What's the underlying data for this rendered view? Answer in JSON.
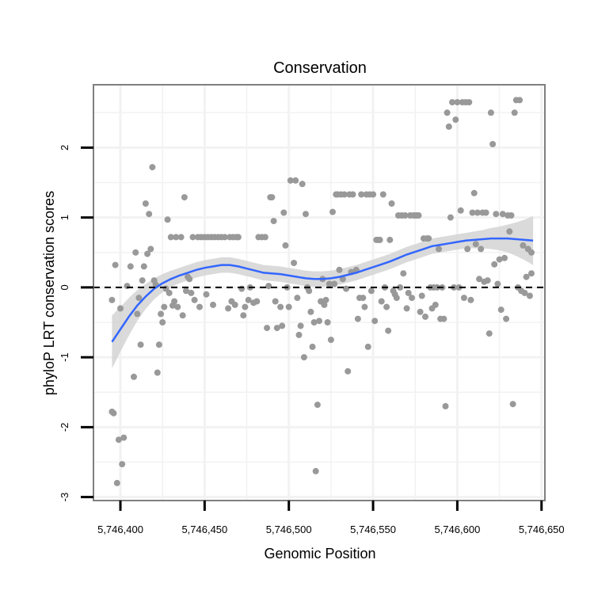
{
  "chart_data": {
    "type": "scatter",
    "title": "Conservation",
    "xlabel": "Genomic Position",
    "ylabel": "phyloP LRT conservation scores",
    "xlim": [
      5746384,
      5746652
    ],
    "ylim": [
      -3.05,
      2.9
    ],
    "x_ticks": [
      5746400,
      5746450,
      5746500,
      5746550,
      5746600,
      5746650
    ],
    "x_tick_labels": [
      "5,746,400",
      "5,746,450",
      "5,746,500",
      "5,746,550",
      "5,746,600",
      "5,746,650"
    ],
    "y_ticks": [
      -3,
      -2,
      -1,
      0,
      1,
      2
    ],
    "y_tick_labels": [
      "-3",
      "-2",
      "-1",
      "0",
      "1",
      "2"
    ],
    "reference_line": 0,
    "grid": true,
    "colors": {
      "points": "#999999",
      "smooth": "#3366ff",
      "ribbon": "#d3d3d3",
      "reference": "#000000",
      "panel_border": "#7f7f7f",
      "grid": "#f2f2f2"
    },
    "points": [
      [
        5746395,
        -0.18
      ],
      [
        5746395,
        -1.78
      ],
      [
        5746396,
        -1.8
      ],
      [
        5746397,
        0.32
      ],
      [
        5746398,
        -2.8
      ],
      [
        5746399,
        -2.18
      ],
      [
        5746400,
        -0.3
      ],
      [
        5746401,
        -2.53
      ],
      [
        5746402,
        -2.15
      ],
      [
        5746404,
        0.02
      ],
      [
        5746406,
        0.3
      ],
      [
        5746408,
        -1.28
      ],
      [
        5746409,
        0.5
      ],
      [
        5746410,
        -0.38
      ],
      [
        5746411,
        -0.15
      ],
      [
        5746412,
        -0.82
      ],
      [
        5746413,
        0.1
      ],
      [
        5746414,
        0.3
      ],
      [
        5746415,
        1.2
      ],
      [
        5746416,
        0.48
      ],
      [
        5746417,
        1.05
      ],
      [
        5746418,
        0.55
      ],
      [
        5746419,
        1.72
      ],
      [
        5746420,
        0.1
      ],
      [
        5746421,
        0.04
      ],
      [
        5746422,
        -1.22
      ],
      [
        5746423,
        -0.82
      ],
      [
        5746424,
        -0.38
      ],
      [
        5746425,
        -0.5
      ],
      [
        5746426,
        -0.28
      ],
      [
        5746427,
        -0.02
      ],
      [
        5746428,
        0.97
      ],
      [
        5746429,
        -0.08
      ],
      [
        5746430,
        0.72
      ],
      [
        5746431,
        -0.26
      ],
      [
        5746432,
        -0.2
      ],
      [
        5746433,
        0.72
      ],
      [
        5746434,
        -0.28
      ],
      [
        5746436,
        0.72
      ],
      [
        5746437,
        -0.4
      ],
      [
        5746438,
        1.29
      ],
      [
        5746439,
        -0.05
      ],
      [
        5746440,
        0.15
      ],
      [
        5746441,
        0.12
      ],
      [
        5746442,
        -0.08
      ],
      [
        5746443,
        0.72
      ],
      [
        5746444,
        -0.18
      ],
      [
        5746446,
        0.72
      ],
      [
        5746447,
        -0.28
      ],
      [
        5746448,
        0.72
      ],
      [
        5746450,
        0.72
      ],
      [
        5746451,
        -0.1
      ],
      [
        5746452,
        0.72
      ],
      [
        5746454,
        0.72
      ],
      [
        5746455,
        -0.25
      ],
      [
        5746456,
        0.72
      ],
      [
        5746458,
        0.72
      ],
      [
        5746460,
        0.72
      ],
      [
        5746462,
        0.72
      ],
      [
        5746464,
        -0.3
      ],
      [
        5746465,
        0.72
      ],
      [
        5746466,
        -0.2
      ],
      [
        5746467,
        0.72
      ],
      [
        5746468,
        -0.25
      ],
      [
        5746469,
        0.72
      ],
      [
        5746470,
        0.72
      ],
      [
        5746472,
        -0.02
      ],
      [
        5746473,
        -0.4
      ],
      [
        5746474,
        -0.28
      ],
      [
        5746476,
        -0.18
      ],
      [
        5746477,
        0.0
      ],
      [
        5746479,
        -0.22
      ],
      [
        5746481,
        -0.2
      ],
      [
        5746482,
        0.72
      ],
      [
        5746484,
        0.72
      ],
      [
        5746486,
        0.72
      ],
      [
        5746487,
        -0.58
      ],
      [
        5746488,
        0.02
      ],
      [
        5746489,
        1.29
      ],
      [
        5746490,
        1.29
      ],
      [
        5746491,
        0.95
      ],
      [
        5746492,
        -0.2
      ],
      [
        5746493,
        -0.58
      ],
      [
        5746495,
        -0.28
      ],
      [
        5746496,
        -0.55
      ],
      [
        5746497,
        1.07
      ],
      [
        5746498,
        0.6
      ],
      [
        5746499,
        0.0
      ],
      [
        5746500,
        -0.28
      ],
      [
        5746501,
        1.53
      ],
      [
        5746503,
        0.35
      ],
      [
        5746504,
        1.53
      ],
      [
        5746505,
        -0.15
      ],
      [
        5746506,
        -0.68
      ],
      [
        5746507,
        -0.55
      ],
      [
        5746508,
        1.48
      ],
      [
        5746509,
        -1.0
      ],
      [
        5746510,
        1.05
      ],
      [
        5746511,
        0.0
      ],
      [
        5746512,
        -0.05
      ],
      [
        5746513,
        -0.35
      ],
      [
        5746514,
        -0.85
      ],
      [
        5746515,
        -0.5
      ],
      [
        5746516,
        -2.63
      ],
      [
        5746517,
        -1.68
      ],
      [
        5746518,
        -0.48
      ],
      [
        5746519,
        -0.2
      ],
      [
        5746520,
        0.12
      ],
      [
        5746521,
        -0.25
      ],
      [
        5746522,
        -0.18
      ],
      [
        5746523,
        -0.5
      ],
      [
        5746524,
        0.05
      ],
      [
        5746525,
        -0.75
      ],
      [
        5746526,
        1.08
      ],
      [
        5746527,
        0.05
      ],
      [
        5746528,
        1.33
      ],
      [
        5746529,
        1.33
      ],
      [
        5746530,
        0.25
      ],
      [
        5746531,
        1.33
      ],
      [
        5746532,
        0.12
      ],
      [
        5746533,
        1.33
      ],
      [
        5746534,
        -0.02
      ],
      [
        5746535,
        -1.2
      ],
      [
        5746536,
        1.33
      ],
      [
        5746537,
        0.22
      ],
      [
        5746538,
        1.33
      ],
      [
        5746540,
        0.25
      ],
      [
        5746541,
        -0.45
      ],
      [
        5746542,
        -0.15
      ],
      [
        5746543,
        1.33
      ],
      [
        5746544,
        -0.15
      ],
      [
        5746545,
        -0.28
      ],
      [
        5746546,
        1.33
      ],
      [
        5746547,
        -0.85
      ],
      [
        5746548,
        1.33
      ],
      [
        5746549,
        -0.05
      ],
      [
        5746550,
        1.33
      ],
      [
        5746551,
        -0.48
      ],
      [
        5746552,
        0.68
      ],
      [
        5746553,
        0.68
      ],
      [
        5746554,
        0.68
      ],
      [
        5746555,
        -0.2
      ],
      [
        5746556,
        1.33
      ],
      [
        5746557,
        0.0
      ],
      [
        5746558,
        -0.28
      ],
      [
        5746559,
        -0.62
      ],
      [
        5746560,
        0.68
      ],
      [
        5746561,
        1.2
      ],
      [
        5746562,
        -0.05
      ],
      [
        5746563,
        -0.1
      ],
      [
        5746564,
        -0.15
      ],
      [
        5746565,
        1.03
      ],
      [
        5746566,
        0.0
      ],
      [
        5746567,
        1.03
      ],
      [
        5746568,
        0.2
      ],
      [
        5746569,
        1.03
      ],
      [
        5746570,
        -0.3
      ],
      [
        5746571,
        -0.08
      ],
      [
        5746572,
        1.03
      ],
      [
        5746573,
        -0.15
      ],
      [
        5746574,
        1.03
      ],
      [
        5746575,
        1.03
      ],
      [
        5746576,
        1.03
      ],
      [
        5746577,
        1.03
      ],
      [
        5746578,
        -0.35
      ],
      [
        5746579,
        -0.12
      ],
      [
        5746580,
        0.7
      ],
      [
        5746581,
        -0.42
      ],
      [
        5746582,
        0.7
      ],
      [
        5746583,
        0.7
      ],
      [
        5746584,
        0.0
      ],
      [
        5746585,
        -0.3
      ],
      [
        5746586,
        0.0
      ],
      [
        5746587,
        -0.25
      ],
      [
        5746588,
        0.0
      ],
      [
        5746589,
        0.55
      ],
      [
        5746590,
        -0.45
      ],
      [
        5746591,
        0.0
      ],
      [
        5746592,
        -0.45
      ],
      [
        5746593,
        -1.7
      ],
      [
        5746594,
        2.5
      ],
      [
        5746595,
        2.3
      ],
      [
        5746596,
        1.0
      ],
      [
        5746597,
        2.65
      ],
      [
        5746598,
        0.0
      ],
      [
        5746599,
        2.4
      ],
      [
        5746600,
        2.65
      ],
      [
        5746601,
        0.0
      ],
      [
        5746602,
        1.1
      ],
      [
        5746603,
        2.65
      ],
      [
        5746604,
        -0.15
      ],
      [
        5746605,
        2.65
      ],
      [
        5746606,
        0.55
      ],
      [
        5746607,
        2.65
      ],
      [
        5746608,
        -0.18
      ],
      [
        5746609,
        1.07
      ],
      [
        5746610,
        1.35
      ],
      [
        5746611,
        0.62
      ],
      [
        5746612,
        1.07
      ],
      [
        5746613,
        0.12
      ],
      [
        5746614,
        0.55
      ],
      [
        5746615,
        1.07
      ],
      [
        5746616,
        0.08
      ],
      [
        5746617,
        1.07
      ],
      [
        5746618,
        0.1
      ],
      [
        5746619,
        -0.66
      ],
      [
        5746620,
        2.5
      ],
      [
        5746621,
        2.05
      ],
      [
        5746622,
        0.33
      ],
      [
        5746623,
        1.05
      ],
      [
        5746624,
        0.05
      ],
      [
        5746625,
        0.4
      ],
      [
        5746626,
        -0.32
      ],
      [
        5746627,
        1.05
      ],
      [
        5746628,
        0.42
      ],
      [
        5746629,
        -0.45
      ],
      [
        5746630,
        1.03
      ],
      [
        5746631,
        0.8
      ],
      [
        5746632,
        1.03
      ],
      [
        5746633,
        -1.67
      ],
      [
        5746634,
        2.5
      ],
      [
        5746635,
        2.68
      ],
      [
        5746636,
        0.0
      ],
      [
        5746637,
        2.68
      ],
      [
        5746638,
        -0.05
      ],
      [
        5746639,
        0.6
      ],
      [
        5746640,
        -0.08
      ],
      [
        5746641,
        0.15
      ],
      [
        5746642,
        0.55
      ],
      [
        5746643,
        -0.12
      ],
      [
        5746644,
        0.2
      ],
      [
        5746644,
        0.5
      ]
    ],
    "smooth": {
      "x": [
        5746395,
        5746400,
        5746405,
        5746410,
        5746415,
        5746420,
        5746425,
        5746430,
        5746435,
        5746440,
        5746445,
        5746450,
        5746455,
        5746460,
        5746465,
        5746470,
        5746475,
        5746480,
        5746485,
        5746490,
        5746495,
        5746500,
        5746505,
        5746510,
        5746515,
        5746520,
        5746525,
        5746530,
        5746535,
        5746540,
        5746545,
        5746550,
        5746555,
        5746560,
        5746565,
        5746570,
        5746575,
        5746580,
        5746585,
        5746590,
        5746595,
        5746600,
        5746605,
        5746610,
        5746615,
        5746620,
        5746625,
        5746630,
        5746635,
        5746640,
        5746645
      ],
      "y": [
        -0.78,
        -0.6,
        -0.42,
        -0.26,
        -0.13,
        -0.02,
        0.06,
        0.12,
        0.17,
        0.21,
        0.25,
        0.28,
        0.3,
        0.32,
        0.32,
        0.3,
        0.27,
        0.24,
        0.21,
        0.2,
        0.19,
        0.17,
        0.15,
        0.13,
        0.12,
        0.12,
        0.13,
        0.15,
        0.18,
        0.21,
        0.25,
        0.29,
        0.33,
        0.37,
        0.42,
        0.47,
        0.51,
        0.55,
        0.59,
        0.61,
        0.63,
        0.65,
        0.67,
        0.68,
        0.69,
        0.7,
        0.7,
        0.7,
        0.69,
        0.68,
        0.67
      ],
      "band": [
        0.38,
        0.32,
        0.27,
        0.22,
        0.18,
        0.15,
        0.13,
        0.12,
        0.11,
        0.11,
        0.11,
        0.11,
        0.11,
        0.11,
        0.11,
        0.11,
        0.11,
        0.11,
        0.11,
        0.11,
        0.11,
        0.11,
        0.11,
        0.11,
        0.11,
        0.11,
        0.11,
        0.11,
        0.11,
        0.11,
        0.11,
        0.11,
        0.11,
        0.11,
        0.11,
        0.11,
        0.11,
        0.11,
        0.11,
        0.11,
        0.11,
        0.11,
        0.11,
        0.12,
        0.13,
        0.15,
        0.17,
        0.2,
        0.24,
        0.29,
        0.35
      ]
    }
  }
}
